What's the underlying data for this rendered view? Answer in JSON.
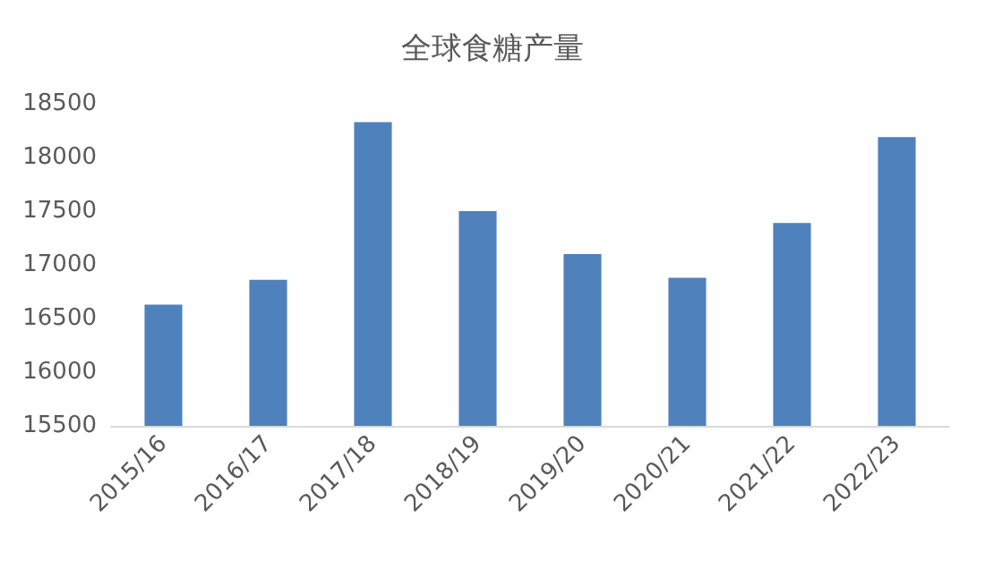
{
  "chart_data": {
    "type": "bar",
    "title": "全球食糖产量",
    "categories": [
      "2015/16",
      "2016/17",
      "2017/18",
      "2018/19",
      "2019/20",
      "2020/21",
      "2021/22",
      "2022/23"
    ],
    "values": [
      16630,
      16860,
      18330,
      17500,
      17100,
      16880,
      17390,
      18190
    ],
    "color": "#4f81bd",
    "ylim": [
      15500,
      18500
    ],
    "yticks": [
      15500,
      16000,
      16500,
      17000,
      17500,
      18000,
      18500
    ],
    "grid": false
  }
}
